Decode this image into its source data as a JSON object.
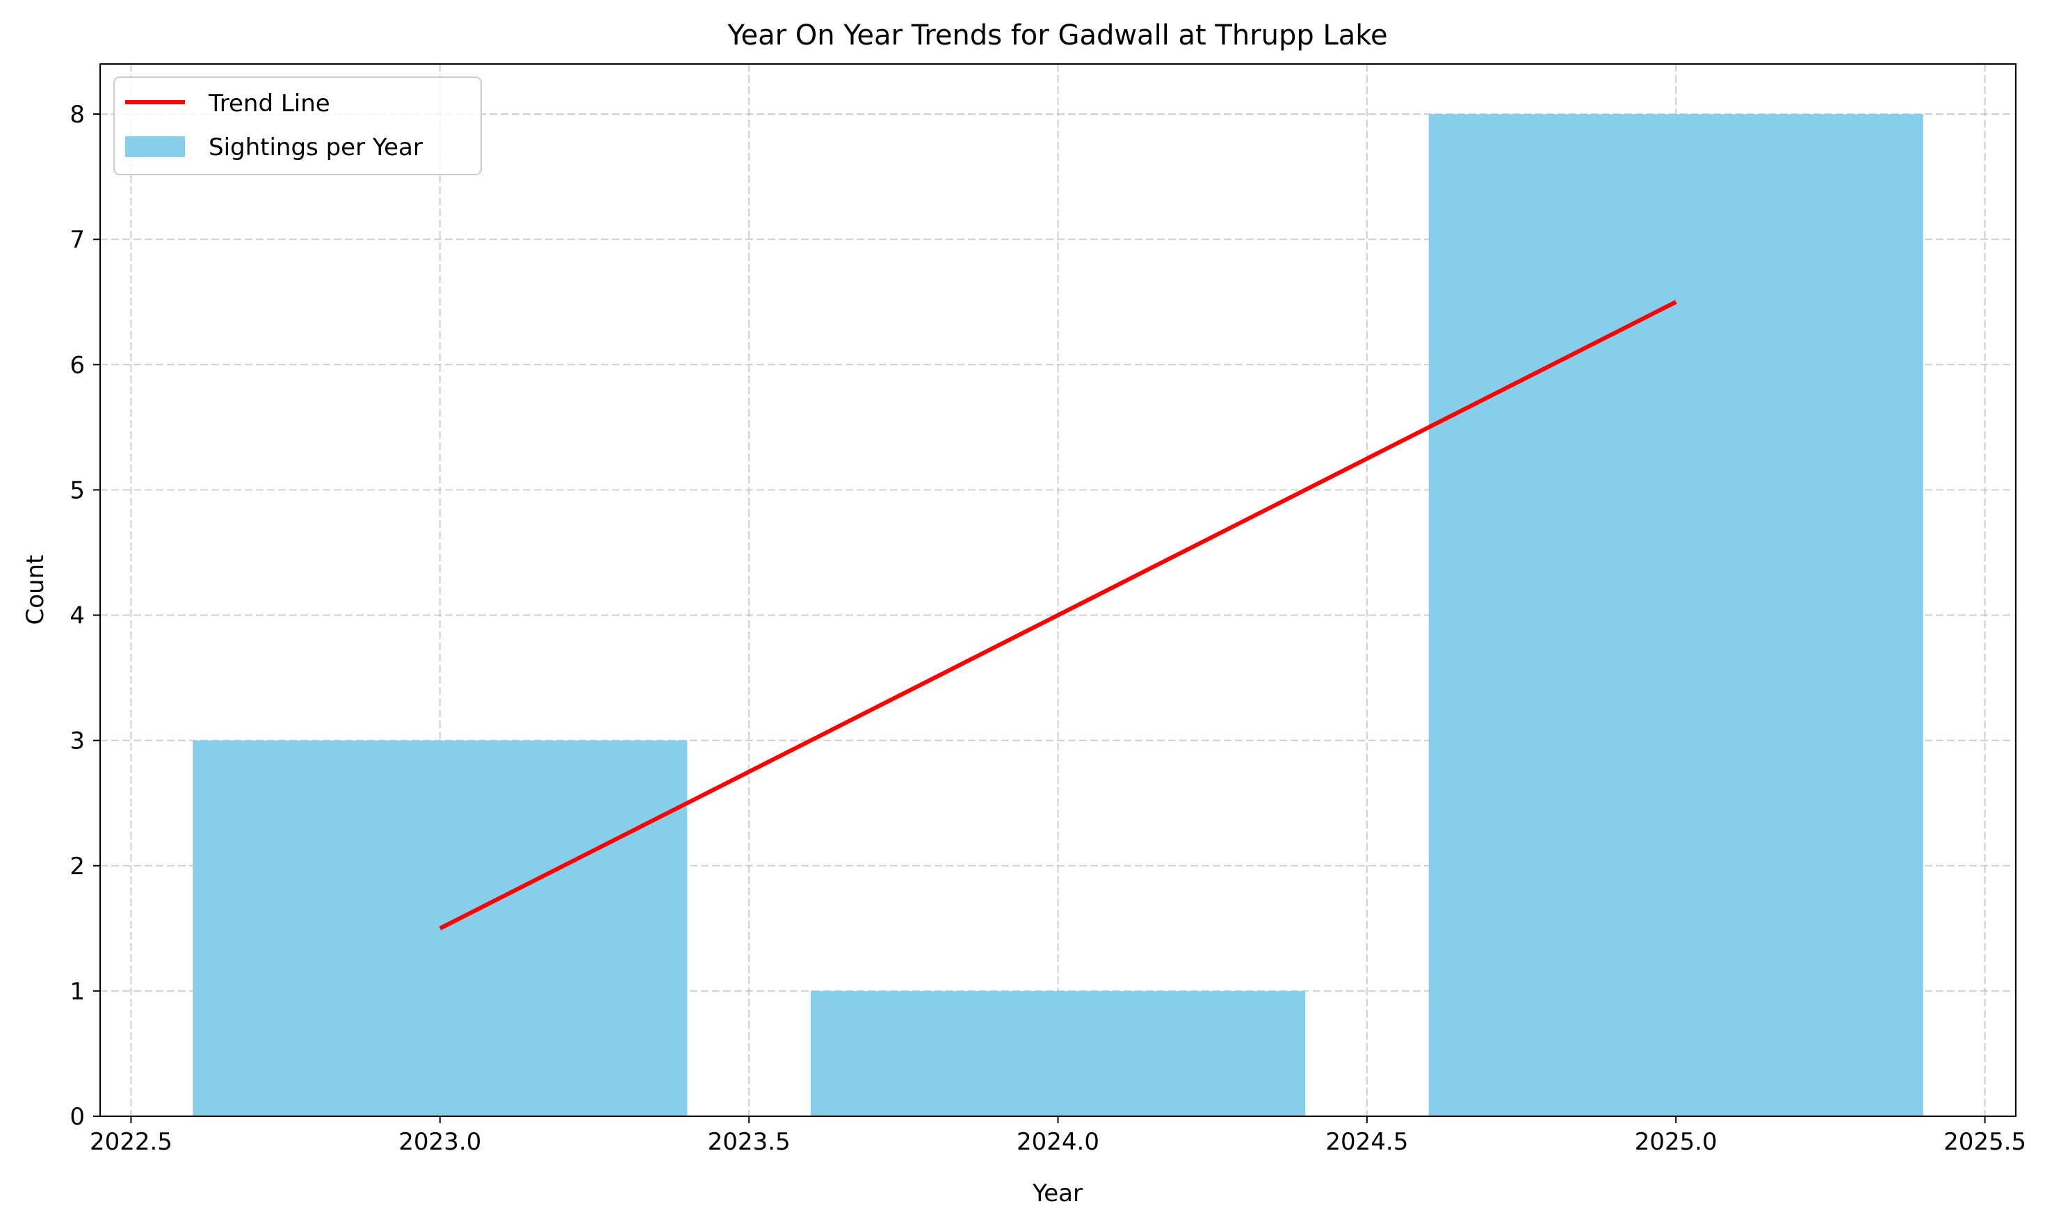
{
  "chart_data": {
    "type": "bar",
    "title": "Year On Year Trends for Gadwall at Thrupp Lake",
    "xlabel": "Year",
    "ylabel": "Count",
    "xlim": [
      2022.45,
      2025.55
    ],
    "ylim": [
      0,
      8.4
    ],
    "x_ticks": [
      "2022.5",
      "2023.0",
      "2023.5",
      "2024.0",
      "2024.5",
      "2025.0",
      "2025.5"
    ],
    "y_ticks": [
      "0",
      "1",
      "2",
      "3",
      "4",
      "5",
      "6",
      "7",
      "8"
    ],
    "bar_width": 0.8,
    "series": [
      {
        "name": "Sightings per Year",
        "kind": "bar",
        "color": "#87ceeb",
        "x": [
          2023,
          2024,
          2025
        ],
        "values": [
          3,
          1,
          8
        ]
      },
      {
        "name": "Trend Line",
        "kind": "line",
        "color": "#ff0000",
        "x": [
          2023,
          2025
        ],
        "values": [
          1.5,
          6.5
        ]
      }
    ],
    "grid": true,
    "grid_style": "dashed",
    "legend_position": "top-left"
  }
}
